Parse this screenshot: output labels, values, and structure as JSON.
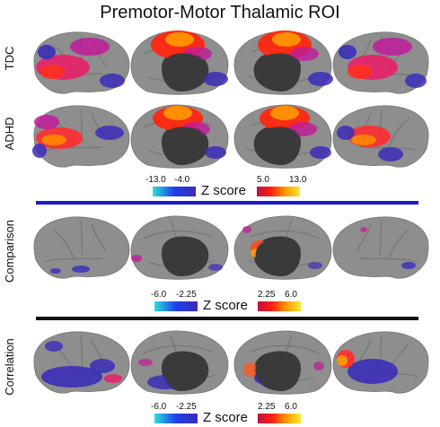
{
  "title": "Premotor-Motor Thalamic ROI",
  "row_labels": [
    "TDC",
    "ADHD",
    "Comparison",
    "Correlation"
  ],
  "colorbars": [
    {
      "label": "Z score",
      "neg_ticks": [
        "-13.0",
        "-4.0"
      ],
      "pos_ticks": [
        "5.0",
        "13.0"
      ]
    },
    {
      "label": "Z score",
      "neg_ticks": [
        "-6.0",
        "-2.25"
      ],
      "pos_ticks": [
        "2.25",
        "6.0"
      ]
    },
    {
      "label": "Z score",
      "neg_ticks": [
        "-6.0",
        "-2.25"
      ],
      "pos_ticks": [
        "2.25",
        "6.0"
      ]
    }
  ],
  "colors": {
    "brain": "#8e8e8e",
    "sulcus": "#6a6a6a",
    "medial_wall": "#3a3a3a",
    "comparison_divider": "#1a1acc",
    "correlation_divider": "#111111",
    "neg_scale": [
      "#29e0e0",
      "#1f3fe8",
      "#3b2db8"
    ],
    "pos_scale": [
      "#c01040",
      "#ff2010",
      "#ff9a00",
      "#ffe830"
    ]
  }
}
